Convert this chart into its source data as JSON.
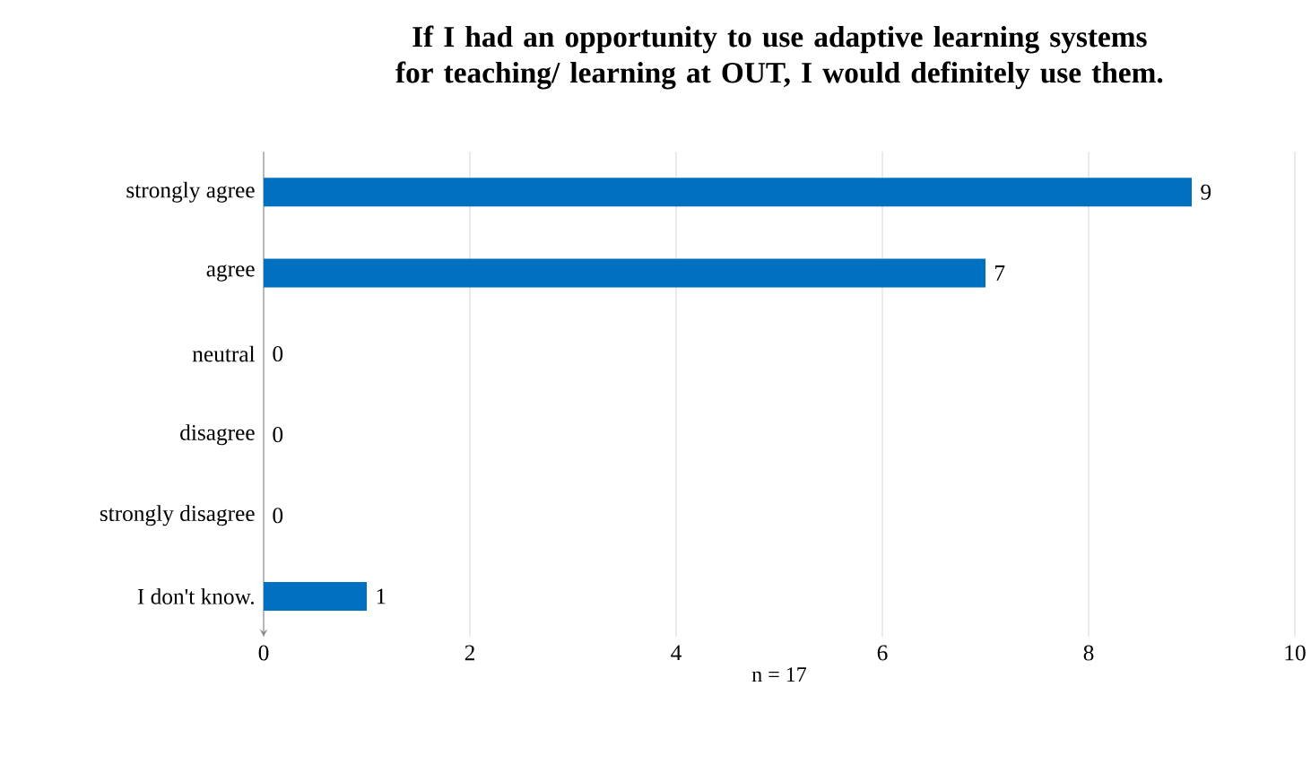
{
  "chart_data": {
    "type": "bar",
    "orientation": "horizontal",
    "title": "If I had an opportunity to use adaptive learning systems for teaching/ learning at OUT, I would definitely use them.",
    "categories": [
      "strongly agree",
      "agree",
      "neutral",
      "disagree",
      "strongly disagree",
      "I don't know."
    ],
    "values": [
      9,
      7,
      0,
      0,
      0,
      1
    ],
    "color": "#0070c0",
    "xlim": [
      0,
      10
    ],
    "xticks": [
      0,
      2,
      4,
      6,
      8,
      10
    ],
    "xlabel": "n = 17",
    "grid": "x",
    "data_labels": true
  }
}
